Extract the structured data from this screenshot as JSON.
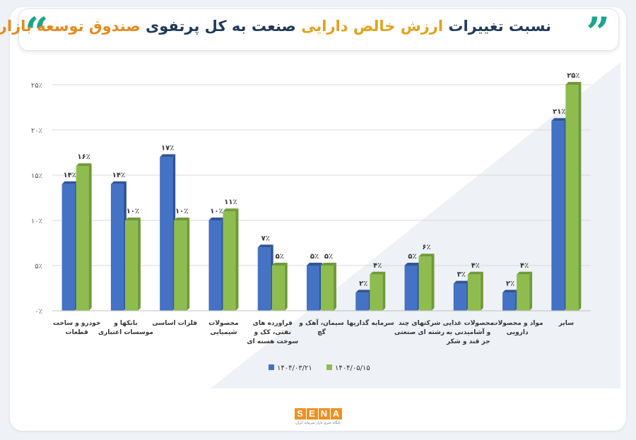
{
  "header": {
    "title_part1": "نسبت تغییرات ",
    "title_highlight1": "ارزش خالص دارایی",
    "title_part2": " صنعت به کل پرتفوی ",
    "title_highlight2": "صندوق توسعه بازار",
    "quote_left": "“",
    "quote_right": "”"
  },
  "logo": {
    "letters": [
      "S",
      "E",
      "N",
      "A"
    ],
    "subtitle": "پایگاه خبری بازار سرمایه ایران"
  },
  "chart_data": {
    "type": "bar",
    "categories": [
      "خودرو و ساخت قطعات",
      "بانکها و موسسات اعتباری",
      "فلزات اساسی",
      "محصولات شیمیایی",
      "فراورده های نفتی، کک و سوخت هسته ای",
      "سیمان، آهک و گچ",
      "سرمایه گذاریها",
      "شرکتهای چند رشته ای صنعتی",
      "محصولات غذایی و آشامیدنی به جز قند و شکر",
      "مواد و محصولات دارویی",
      "سایر"
    ],
    "series": [
      {
        "name": "۱۴۰۴/۰۳/۲۱",
        "color": "#4472c4",
        "values": [
          14,
          14,
          17,
          10,
          7,
          5,
          2,
          5,
          3,
          2,
          21
        ],
        "labels": [
          "۱۴٪",
          "۱۴٪",
          "۱۷٪",
          "۱۰٪",
          "۷٪",
          "۵٪",
          "۲٪",
          "۵٪",
          "۳٪",
          "۲٪",
          "۲۱٪"
        ]
      },
      {
        "name": "۱۴۰۴/۰۵/۱۵",
        "color": "#8fbc4f",
        "values": [
          16,
          10,
          10,
          11,
          5,
          5,
          4,
          6,
          4,
          4,
          25
        ],
        "labels": [
          "۱۶٪",
          "۱۰٪",
          "۱۰٪",
          "۱۱٪",
          "۵٪",
          "۵٪",
          "۴٪",
          "۶٪",
          "۴٪",
          "۴٪",
          "۲۵٪"
        ]
      }
    ],
    "y_ticks": [
      0,
      5,
      10,
      15,
      20,
      25
    ],
    "y_tick_labels": [
      "۰٪",
      "۵٪",
      "۱۰٪",
      "۱۵٪",
      "۲۰٪",
      "۲۵٪"
    ],
    "ylim": [
      0,
      25
    ],
    "grid": true,
    "legend_position": "bottom-center"
  }
}
